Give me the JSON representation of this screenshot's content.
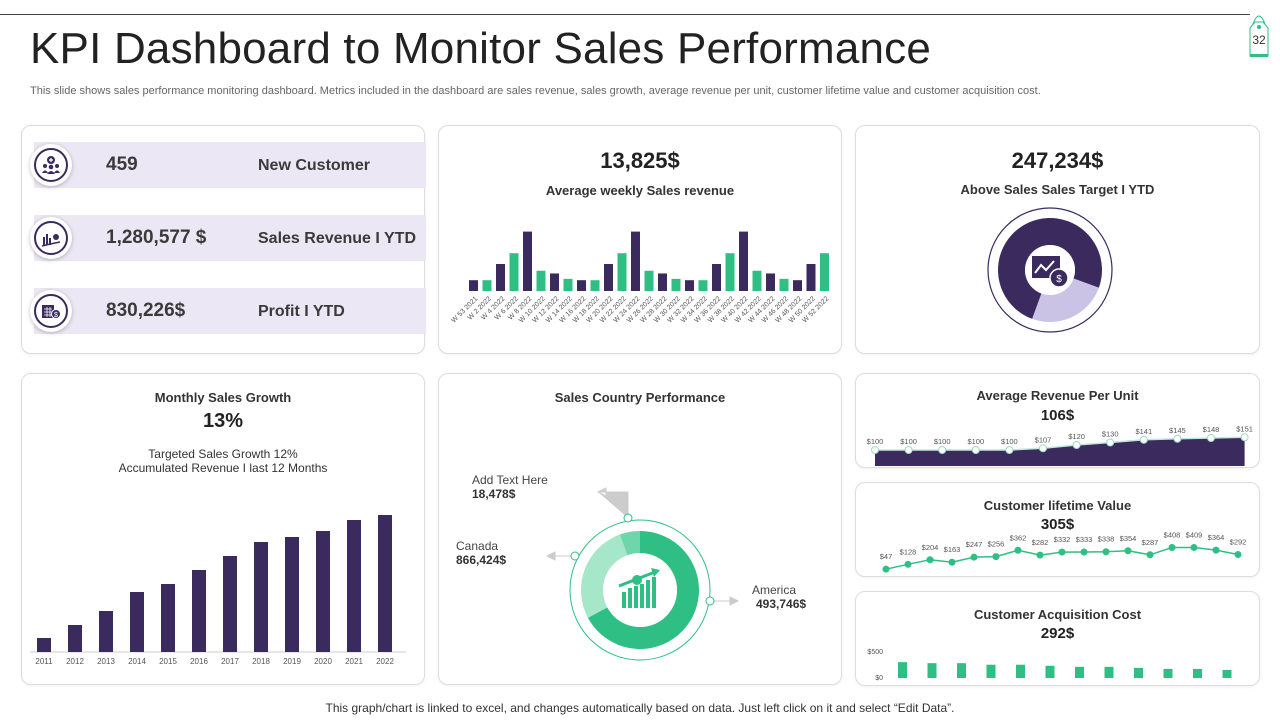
{
  "page_number": "32",
  "title": "KPI Dashboard to Monitor Sales Performance",
  "subtitle": "This slide shows sales performance monitoring dashboard. Metrics included in the dashboard are sales revenue, sales growth, average revenue per unit, customer lifetime value and customer acquisition cost.",
  "kpis": [
    {
      "value": "459",
      "label": "New Customer",
      "icon": "add-customer-icon"
    },
    {
      "value": "1,280,577 $",
      "label": "Sales Revenue I YTD",
      "icon": "revenue-chart-icon"
    },
    {
      "value": "830,226$",
      "label": "Profit I YTD",
      "icon": "calculator-money-icon"
    }
  ],
  "weekly": {
    "value": "13,825$",
    "title": "Average weekly Sales revenue"
  },
  "target": {
    "value": "247,234$",
    "title": "Above Sales Sales Target I YTD",
    "achieved_fraction": 0.75
  },
  "growth": {
    "title": "Monthly Sales Growth",
    "value": "13%",
    "line1": "Targeted Sales Growth 12%",
    "line2": "Accumulated Revenue I last 12 Months"
  },
  "country": {
    "title": "Sales Country Performance",
    "items": [
      {
        "name": "Add Text Here",
        "value": "18,478$"
      },
      {
        "name": "Canada",
        "value": "866,424$"
      },
      {
        "name": "America",
        "value": "493,746$"
      }
    ]
  },
  "arpu": {
    "title": "Average Revenue Per Unit",
    "value": "106$"
  },
  "clv": {
    "title": "Customer lifetime Value",
    "value": "305$"
  },
  "cac": {
    "title": "Customer Acquisition Cost",
    "value": "292$"
  },
  "footer": "This graph/chart is linked to excel, and changes automatically based on data. Just left click on it and select “Edit Data”.",
  "colors": {
    "purple": "#3b2a5e",
    "green": "#2fbf84",
    "lavender": "#ebe7f4",
    "light_purple": "#cbc3e6"
  },
  "chart_data": [
    {
      "type": "bar",
      "name": "weekly-sales",
      "categories": [
        "W 53 2021",
        "W 2 2022",
        "W 4 2022",
        "W 6 2022",
        "W 8 2022",
        "W 10 2022",
        "W 12 2022",
        "W 14 2022",
        "W 16 2022",
        "W 18 2022",
        "W 20 2022",
        "W 22 2022",
        "W 24 2022",
        "W 26 2022",
        "W 28 2022",
        "W 30 2022",
        "W 32 2022",
        "W 34 2022",
        "W 36 2022",
        "W 38 2022",
        "W 40 2022",
        "W 42 2022",
        "W 44 2022",
        "W 46 2022",
        "W 48 2022",
        "W 50 2022",
        "W 52 2022"
      ],
      "values": [
        8,
        8,
        20,
        28,
        44,
        15,
        13,
        9,
        8,
        8,
        20,
        28,
        44,
        15,
        13,
        9,
        8,
        8,
        20,
        28,
        44,
        15,
        13,
        9,
        8,
        20,
        28
      ],
      "colors": [
        "p",
        "g",
        "p",
        "g",
        "p",
        "g",
        "p",
        "g",
        "p",
        "g",
        "p",
        "g",
        "p",
        "g",
        "p",
        "g",
        "p",
        "g",
        "p",
        "g",
        "p",
        "g",
        "p",
        "g",
        "p",
        "p",
        "g"
      ]
    },
    {
      "type": "bar",
      "name": "monthly-growth",
      "categories": [
        "2011",
        "2012",
        "2013",
        "2014",
        "2015",
        "2016",
        "2017",
        "2018",
        "2019",
        "2020",
        "2021",
        "2022"
      ],
      "values": [
        14,
        27,
        41,
        60,
        68,
        82,
        96,
        110,
        115,
        121,
        132,
        137
      ]
    },
    {
      "type": "area",
      "name": "arpu",
      "values": [
        100,
        100,
        100,
        100,
        100,
        107,
        120,
        130,
        141,
        145,
        148,
        151
      ],
      "labels": [
        "$100",
        "$100",
        "$100",
        "$100",
        "$100",
        "$107",
        "$120",
        "$130",
        "$141",
        "$145",
        "$148",
        "$151"
      ]
    },
    {
      "type": "line",
      "name": "clv",
      "values": [
        47,
        128,
        204,
        163,
        247,
        256,
        362,
        282,
        332,
        333,
        338,
        354,
        287,
        408,
        409,
        364,
        292
      ],
      "labels": [
        "$47",
        "$128",
        "$204",
        "$163",
        "$247",
        "$256",
        "$362",
        "$282",
        "$332",
        "$333",
        "$338",
        "$354",
        "$287",
        "$408",
        "$409",
        "$364",
        "$292"
      ]
    },
    {
      "type": "bar",
      "name": "cac",
      "values": [
        305,
        285,
        285,
        255,
        255,
        235,
        215,
        215,
        195,
        175,
        175,
        155
      ],
      "ylim": [
        0,
        500
      ],
      "ytick_labels": [
        "$500",
        "$0"
      ]
    }
  ]
}
